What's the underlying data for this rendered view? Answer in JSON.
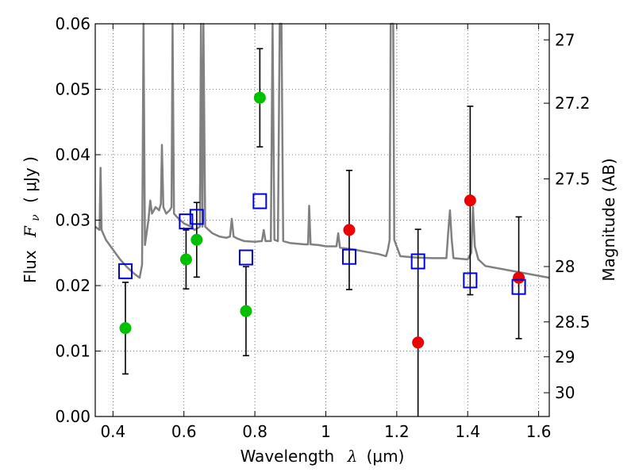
{
  "chart_data": {
    "type": "scatter",
    "xlabel": "Wavelength",
    "xlabel_symbol": "λ",
    "xlabel_unit": "(μm)",
    "ylabel_prefix": "Flux",
    "ylabel_symbol": "F",
    "ylabel_subscript": "ν",
    "ylabel_unit": "( μJy )",
    "y2label": "Magnitude (AB)",
    "xlim": [
      0.35,
      1.63
    ],
    "ylim": [
      0.0,
      0.06
    ],
    "grid": true,
    "x_ticks": [
      {
        "value": 0.4,
        "label": "0.4"
      },
      {
        "value": 0.6,
        "label": "0.6"
      },
      {
        "value": 0.8,
        "label": "0.8"
      },
      {
        "value": 1.0,
        "label": "1"
      },
      {
        "value": 1.2,
        "label": "1.2"
      },
      {
        "value": 1.4,
        "label": "1.4"
      },
      {
        "value": 1.6,
        "label": "1.6"
      }
    ],
    "y_ticks": [
      {
        "value": 0.0,
        "label": "0.00"
      },
      {
        "value": 0.01,
        "label": "0.01"
      },
      {
        "value": 0.02,
        "label": "0.02"
      },
      {
        "value": 0.03,
        "label": "0.03"
      },
      {
        "value": 0.04,
        "label": "0.04"
      },
      {
        "value": 0.05,
        "label": "0.05"
      },
      {
        "value": 0.06,
        "label": "0.06"
      }
    ],
    "y2_ticks": [
      {
        "value": 27,
        "label": "27"
      },
      {
        "value": 27.2,
        "label": "27.2"
      },
      {
        "value": 27.5,
        "label": "27.5"
      },
      {
        "value": 28,
        "label": "28"
      },
      {
        "value": 28.5,
        "label": "28.5"
      },
      {
        "value": 29,
        "label": "29"
      },
      {
        "value": 30,
        "label": "30"
      }
    ],
    "series": [
      {
        "marker": "circle",
        "color": "#00c000",
        "points": [
          {
            "x": 0.435,
            "y": 0.0135,
            "err": 0.007
          },
          {
            "x": 0.606,
            "y": 0.024,
            "err": 0.0045
          },
          {
            "x": 0.636,
            "y": 0.027,
            "err": 0.0057
          },
          {
            "x": 0.775,
            "y": 0.0161,
            "err": 0.0068
          },
          {
            "x": 0.814,
            "y": 0.0487,
            "err": 0.0075
          }
        ]
      },
      {
        "marker": "circle",
        "color": "#ee0000",
        "points": [
          {
            "x": 1.066,
            "y": 0.0285,
            "err": 0.0091
          },
          {
            "x": 1.26,
            "y": 0.0113,
            "err": 0.0173
          },
          {
            "x": 1.407,
            "y": 0.033,
            "err": 0.0144
          },
          {
            "x": 1.544,
            "y": 0.0212,
            "err": 0.0093
          }
        ]
      },
      {
        "marker": "open-square",
        "color": "#0000dd",
        "points": [
          {
            "x": 0.435,
            "y": 0.0222
          },
          {
            "x": 0.606,
            "y": 0.0298
          },
          {
            "x": 0.636,
            "y": 0.0305
          },
          {
            "x": 0.775,
            "y": 0.0243
          },
          {
            "x": 0.814,
            "y": 0.0329
          },
          {
            "x": 1.066,
            "y": 0.0244
          },
          {
            "x": 1.26,
            "y": 0.0237
          },
          {
            "x": 1.407,
            "y": 0.0208
          },
          {
            "x": 1.544,
            "y": 0.0198
          }
        ]
      },
      {
        "type": "line",
        "color": "#808080",
        "points": [
          [
            0.35,
            0.029
          ],
          [
            0.362,
            0.0285
          ],
          [
            0.365,
            0.038
          ],
          [
            0.368,
            0.0285
          ],
          [
            0.38,
            0.027
          ],
          [
            0.4,
            0.0255
          ],
          [
            0.42,
            0.024
          ],
          [
            0.44,
            0.0228
          ],
          [
            0.46,
            0.0218
          ],
          [
            0.475,
            0.0212
          ],
          [
            0.482,
            0.0232
          ],
          [
            0.486,
            0.06
          ],
          [
            0.49,
            0.0262
          ],
          [
            0.5,
            0.03
          ],
          [
            0.505,
            0.033
          ],
          [
            0.51,
            0.031
          ],
          [
            0.52,
            0.032
          ],
          [
            0.53,
            0.0315
          ],
          [
            0.535,
            0.0325
          ],
          [
            0.538,
            0.0415
          ],
          [
            0.542,
            0.032
          ],
          [
            0.55,
            0.031
          ],
          [
            0.56,
            0.0315
          ],
          [
            0.565,
            0.032
          ],
          [
            0.568,
            0.06
          ],
          [
            0.572,
            0.031
          ],
          [
            0.58,
            0.0305
          ],
          [
            0.59,
            0.03
          ],
          [
            0.6,
            0.0295
          ],
          [
            0.62,
            0.029
          ],
          [
            0.63,
            0.0285
          ],
          [
            0.645,
            0.029
          ],
          [
            0.648,
            0.06
          ],
          [
            0.652,
            0.029
          ],
          [
            0.655,
            0.06
          ],
          [
            0.66,
            0.029
          ],
          [
            0.67,
            0.0285
          ],
          [
            0.68,
            0.028
          ],
          [
            0.7,
            0.0275
          ],
          [
            0.72,
            0.0273
          ],
          [
            0.73,
            0.0275
          ],
          [
            0.735,
            0.0302
          ],
          [
            0.74,
            0.0275
          ],
          [
            0.75,
            0.0272
          ],
          [
            0.76,
            0.027
          ],
          [
            0.77,
            0.0268
          ],
          [
            0.8,
            0.0267
          ],
          [
            0.82,
            0.0268
          ],
          [
            0.825,
            0.0285
          ],
          [
            0.83,
            0.0268
          ],
          [
            0.845,
            0.0268
          ],
          [
            0.85,
            0.06
          ],
          [
            0.855,
            0.027
          ],
          [
            0.865,
            0.0268
          ],
          [
            0.87,
            0.06
          ],
          [
            0.875,
            0.06
          ],
          [
            0.88,
            0.0268
          ],
          [
            0.9,
            0.0265
          ],
          [
            0.94,
            0.0263
          ],
          [
            0.95,
            0.0263
          ],
          [
            0.953,
            0.0322
          ],
          [
            0.957,
            0.0263
          ],
          [
            0.98,
            0.0262
          ],
          [
            1.0,
            0.026
          ],
          [
            1.03,
            0.026
          ],
          [
            1.035,
            0.028
          ],
          [
            1.04,
            0.0258
          ],
          [
            1.08,
            0.0255
          ],
          [
            1.1,
            0.0253
          ],
          [
            1.13,
            0.025
          ],
          [
            1.15,
            0.0248
          ],
          [
            1.17,
            0.0245
          ],
          [
            1.175,
            0.0255
          ],
          [
            1.18,
            0.027
          ],
          [
            1.183,
            0.06
          ],
          [
            1.19,
            0.06
          ],
          [
            1.193,
            0.027
          ],
          [
            1.21,
            0.0245
          ],
          [
            1.25,
            0.0243
          ],
          [
            1.3,
            0.0242
          ],
          [
            1.34,
            0.0242
          ],
          [
            1.345,
            0.028
          ],
          [
            1.35,
            0.0315
          ],
          [
            1.355,
            0.027
          ],
          [
            1.36,
            0.0242
          ],
          [
            1.4,
            0.024
          ],
          [
            1.41,
            0.025
          ],
          [
            1.415,
            0.032
          ],
          [
            1.42,
            0.026
          ],
          [
            1.43,
            0.024
          ],
          [
            1.45,
            0.023
          ],
          [
            1.5,
            0.0225
          ],
          [
            1.55,
            0.022
          ],
          [
            1.6,
            0.0215
          ],
          [
            1.63,
            0.0212
          ]
        ]
      }
    ]
  }
}
